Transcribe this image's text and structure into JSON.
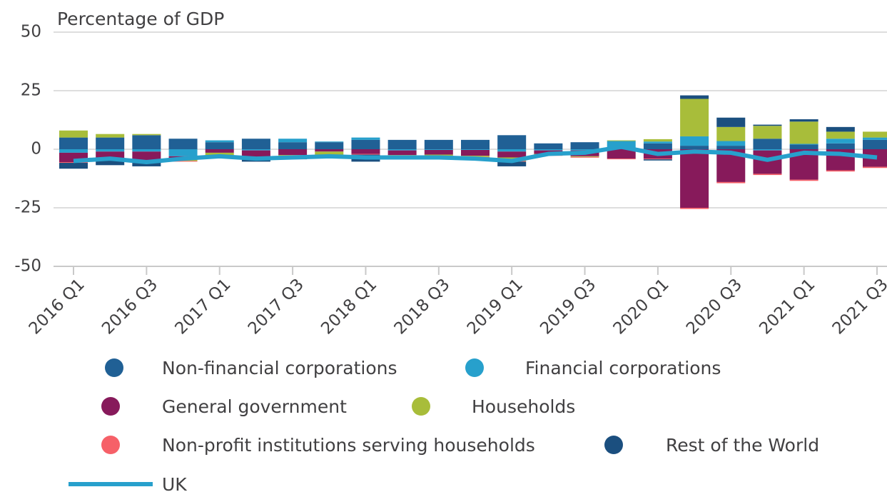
{
  "chart_data": {
    "type": "bar",
    "y_axis_label": "Percentage of GDP",
    "categories": [
      "2016 Q1",
      null,
      "2016 Q3",
      null,
      "2017 Q1",
      null,
      "2017 Q3",
      null,
      "2018 Q1",
      null,
      "2018 Q3",
      null,
      "2019 Q1",
      null,
      "2019 Q3",
      null,
      "2020 Q1",
      null,
      "2020 Q3",
      null,
      "2021 Q1",
      null,
      "2021 Q3"
    ],
    "ylim": [
      -50,
      50
    ],
    "yticks": [
      -50,
      -25,
      0,
      25,
      50
    ],
    "grid": true,
    "stacked": true,
    "series": [
      {
        "name": "Non-financial corporations",
        "color": "#206095",
        "values": [
          5,
          5,
          6,
          4.5,
          3,
          4.5,
          3,
          3,
          4,
          4,
          4,
          4,
          6,
          2.5,
          3,
          0.5,
          2.5,
          1.5,
          1.5,
          4.5,
          2,
          2.5,
          4
        ]
      },
      {
        "name": "Financial corporations",
        "color": "#27a0cc",
        "values": [
          -1.5,
          -1,
          -1,
          -3,
          0.8,
          -0.5,
          1.5,
          0.3,
          1,
          -0.5,
          -0.3,
          -0.3,
          -1,
          -0.5,
          -0.5,
          3,
          0.8,
          4,
          2,
          -0.5,
          0.3,
          2,
          1
        ]
      },
      {
        "name": "General government",
        "color": "#871a5b",
        "values": [
          -4,
          -3,
          -4.5,
          -1,
          -1.5,
          -3,
          -2.5,
          -1,
          -2,
          -2,
          -2,
          -2.5,
          -2.5,
          -1.5,
          -2.5,
          -4,
          -4,
          -25,
          -14,
          -10,
          -13,
          -9,
          -7.5
        ]
      },
      {
        "name": "Households",
        "color": "#a8bd3a",
        "values": [
          3,
          1.5,
          0.5,
          -1,
          -1,
          -0.5,
          -0.5,
          -1.5,
          0,
          -0.5,
          -0.5,
          -0.5,
          -1.5,
          -0.5,
          -0.3,
          0.3,
          1,
          16,
          6,
          5.5,
          9.5,
          3,
          2.5
        ]
      },
      {
        "name": "Non-profit institutions serving households",
        "color": "#f66068",
        "values": [
          -0.3,
          -0.3,
          -0.3,
          -0.3,
          -0.3,
          -0.3,
          -0.3,
          -0.3,
          -0.3,
          -0.3,
          -0.3,
          -0.3,
          -0.3,
          -0.3,
          -0.3,
          -0.3,
          -0.3,
          -0.5,
          -0.5,
          -0.5,
          -0.5,
          -0.5,
          -0.5
        ]
      },
      {
        "name": "Rest of the World",
        "color": "#1b4f7f",
        "values": [
          -2.5,
          -2.5,
          -1.5,
          0,
          -1,
          -1,
          -1,
          -0.5,
          -3,
          0,
          0,
          -0.5,
          -2,
          0,
          0,
          0,
          -0.5,
          1.5,
          4,
          0.5,
          1,
          2,
          0
        ]
      },
      {
        "name": "UK",
        "type": "line",
        "color": "#27a0cc",
        "values": [
          -5,
          -4,
          -5.5,
          -4,
          -3,
          -4,
          -3.5,
          -3,
          -3.5,
          -3.5,
          -3.5,
          -4,
          -5,
          -2,
          -1.5,
          1,
          -2,
          -1,
          -1.5,
          -4.5,
          -1.5,
          -2,
          -3.5
        ]
      }
    ]
  }
}
